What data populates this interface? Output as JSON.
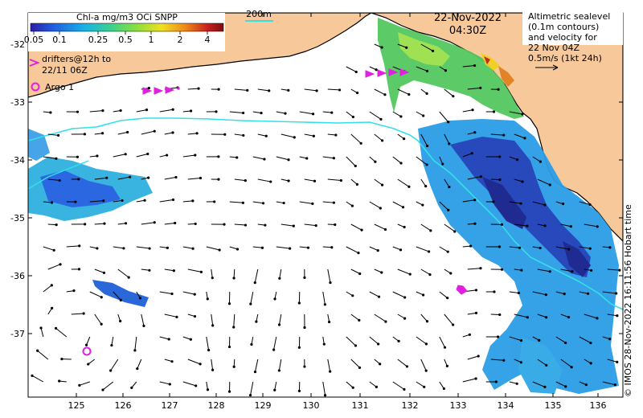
{
  "map": {
    "colorbar": {
      "title": "Chl-a mg/m3 OCi SNPP",
      "ticks": [
        "0.05",
        "0.1",
        "0.25",
        "0.5",
        "1",
        "2",
        "4"
      ],
      "colors": [
        "#2b1ea8",
        "#1f5fe0",
        "#17b2e8",
        "#3cd28a",
        "#8be03c",
        "#f0e020",
        "#f08a18",
        "#c81e1e",
        "#7a1010"
      ]
    },
    "bathy_label": "200m",
    "date": "22-Nov-2022",
    "time": "04:30Z",
    "altimetry_note": [
      "Altimetric sealevel",
      "(0.1m contours)",
      "and velocity for",
      "22 Nov 04Z",
      "0.5m/s (1kt 24h)"
    ],
    "drifters_label": [
      "drifters@12h to",
      "22/11 06Z"
    ],
    "argo_label": "Argo 1",
    "lon_ticks": [
      "125",
      "126",
      "127",
      "128",
      "129",
      "130",
      "131",
      "132",
      "133",
      "134",
      "135",
      "136"
    ],
    "lat_ticks": [
      "-32",
      "-33",
      "-34",
      "-35",
      "-36",
      "-37"
    ],
    "credit": "© IMOS 28-Nov-2022 16:11:56 Hobart time",
    "colors": {
      "land": "#f6c89a",
      "bathy_line": "#33e0e8",
      "drifter": "#e020e0",
      "argo": "#e020e0",
      "vector": "#000000"
    }
  }
}
